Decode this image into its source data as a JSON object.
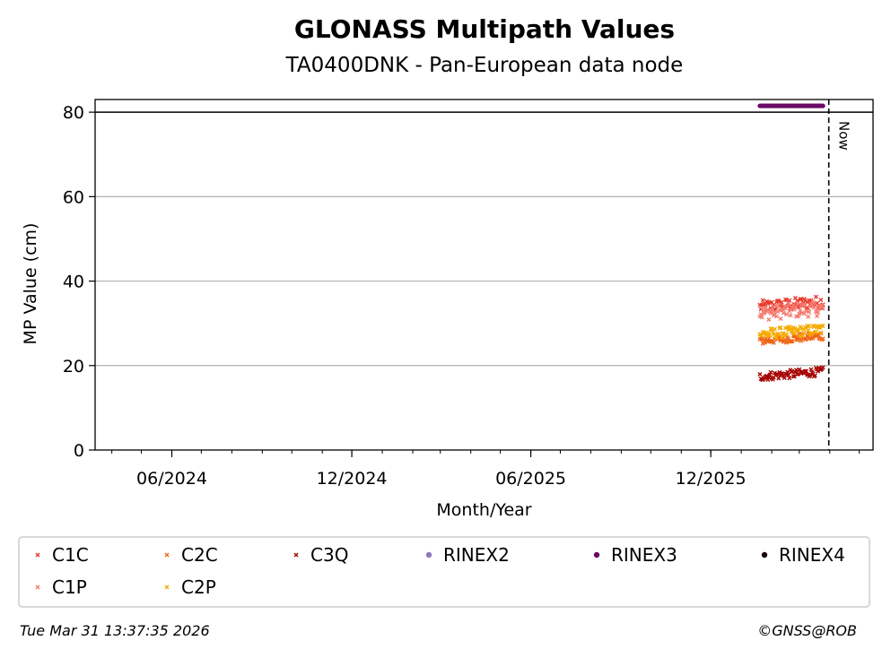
{
  "chart_data": {
    "type": "scatter",
    "title": "GLONASS Multipath Values",
    "subtitle": "TA0400DNK - Pan-European data node",
    "xlabel": "Month/Year",
    "ylabel": "MP Value (cm)",
    "ylim": [
      0,
      80
    ],
    "yticks": [
      0,
      20,
      40,
      60,
      80
    ],
    "xlim": [
      "2024-03-15",
      "2026-05-15"
    ],
    "xticks": [
      "06/2024",
      "12/2024",
      "06/2025",
      "12/2025"
    ],
    "reference_line": {
      "y": 80
    },
    "now_line": {
      "label": "Now",
      "date": "2026-03-31"
    },
    "grid": "y",
    "legend_position": "bottom",
    "series": [
      {
        "name": "C1C",
        "marker": "x",
        "color": "#e8382b",
        "x_range": [
          "2026-01-20",
          "2026-03-25"
        ],
        "approx_mean": 34.5,
        "spread": 3.0
      },
      {
        "name": "C1P",
        "marker": "x",
        "color": "#f57a6e",
        "x_range": [
          "2026-01-20",
          "2026-03-25"
        ],
        "approx_mean": 33.0,
        "spread": 3.5
      },
      {
        "name": "C2C",
        "marker": "x",
        "color": "#f06414",
        "x_range": [
          "2026-01-20",
          "2026-03-25"
        ],
        "approx_mean": 26.5,
        "spread": 2.0
      },
      {
        "name": "C2P",
        "marker": "x",
        "color": "#f5ac00",
        "x_range": [
          "2026-01-20",
          "2026-03-25"
        ],
        "approx_mean": 28.0,
        "spread": 2.5
      },
      {
        "name": "C3Q",
        "marker": "x",
        "color": "#a50000",
        "x_range": [
          "2026-01-20",
          "2026-03-25"
        ],
        "approx_mean": 18.0,
        "spread": 2.0
      },
      {
        "name": "RINEX2",
        "marker": "o",
        "color": "#8b78bd",
        "x_range": [],
        "approx_mean": null,
        "spread": 0
      },
      {
        "name": "RINEX3",
        "marker": "o",
        "color": "#6a0a67",
        "x_range": [
          "2026-01-20",
          "2026-03-25"
        ],
        "approx_mean": 81.5,
        "spread": 0
      },
      {
        "name": "RINEX4",
        "marker": "o",
        "color": "#1a0010",
        "x_range": [],
        "approx_mean": null,
        "spread": 0
      }
    ]
  },
  "footer": {
    "timestamp": "Tue Mar 31 13:37:35 2026",
    "credit": "©GNSS@ROB"
  }
}
